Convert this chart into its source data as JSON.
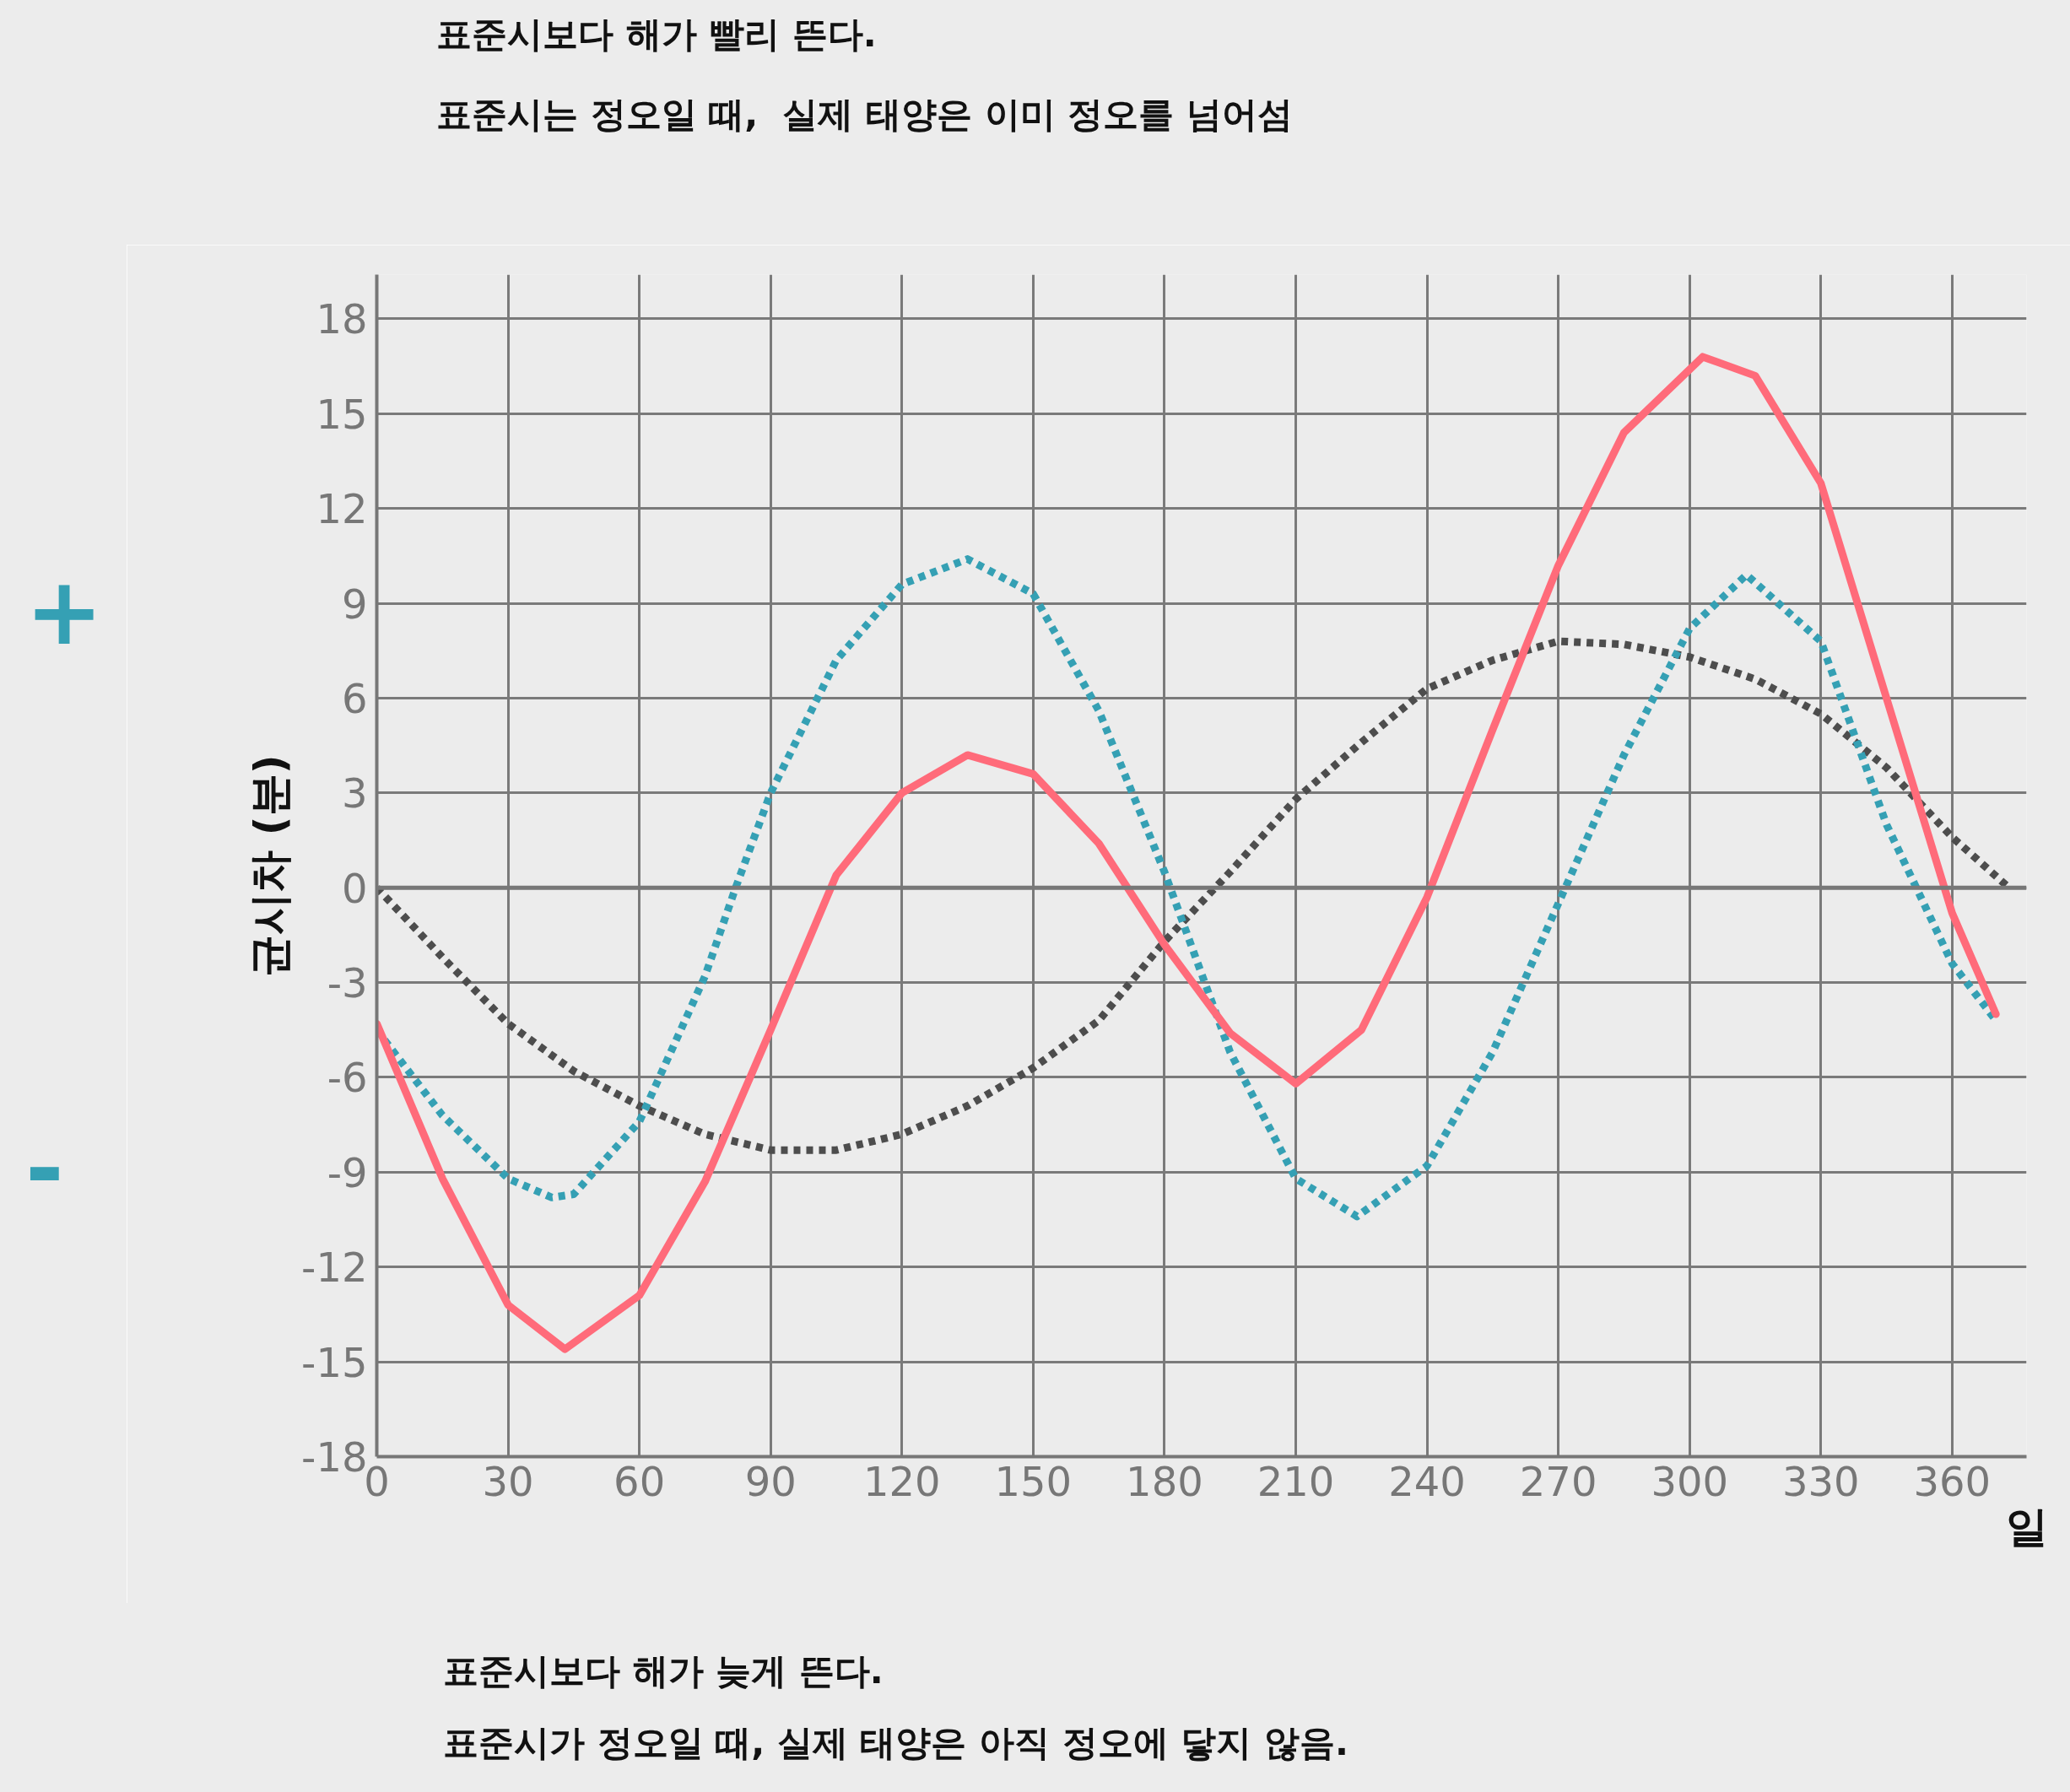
{
  "chart_data": {
    "type": "line",
    "xlabel": "일",
    "ylabel": "균시차 (분)",
    "xlim": [
      0,
      377
    ],
    "ylim": [
      -18,
      19.4
    ],
    "xticks": [
      0,
      30,
      60,
      90,
      120,
      150,
      180,
      210,
      240,
      270,
      300,
      330,
      360
    ],
    "yticks": [
      -18,
      -15,
      -12,
      -9,
      -6,
      -3,
      0,
      3,
      6,
      9,
      12,
      15,
      18
    ],
    "grid": true,
    "marker": "none",
    "ref_lines": [
      {
        "axis": "y",
        "value": 0,
        "label": null,
        "color": "#777777"
      }
    ],
    "annotations": [
      "표준시보다 해가 빨리 뜬다.",
      "표준시는 정오일 때,  실제 태양은 이미 정오를 넘어섬",
      "표준시보다 해가 늦게 뜬다.",
      "표준시가 정오일 때, 실제 태양은 아직 정오에 닿지 않음.",
      "+",
      "-"
    ],
    "series": [
      {
        "color": "#4d4d4d",
        "line_style": "dotted",
        "x": [
          0,
          15,
          30,
          45,
          60,
          75,
          90,
          105,
          120,
          135,
          150,
          165,
          180,
          195,
          210,
          225,
          240,
          255,
          270,
          285,
          300,
          315,
          330,
          345,
          360,
          373
        ],
        "values": [
          0,
          -2.2,
          -4.3,
          -5.8,
          -6.9,
          -7.8,
          -8.3,
          -8.3,
          -7.8,
          -6.9,
          -5.7,
          -4.2,
          -1.7,
          0.5,
          2.8,
          4.6,
          6.3,
          7.2,
          7.8,
          7.7,
          7.3,
          6.6,
          5.5,
          3.8,
          1.6,
          0
        ]
      },
      {
        "color": "#35a0b4",
        "line_style": "dotted",
        "x": [
          0,
          15,
          30,
          40,
          45,
          60,
          75,
          82,
          90,
          105,
          120,
          135,
          150,
          165,
          180,
          195,
          210,
          224,
          240,
          255,
          270,
          285,
          300,
          313,
          330,
          345,
          360,
          370
        ],
        "values": [
          -4.5,
          -7.2,
          -9.2,
          -9.8,
          -9.7,
          -7.4,
          -2.8,
          0,
          3.0,
          7.2,
          9.6,
          10.4,
          9.3,
          5.6,
          0.5,
          -5.2,
          -9.2,
          -10.4,
          -8.8,
          -5.2,
          -0.5,
          4.2,
          8.2,
          9.9,
          7.8,
          2.0,
          -2.4,
          -4.2
        ]
      },
      {
        "color": "#ff6b7a",
        "line_style": "solid",
        "x": [
          0,
          15,
          30,
          43,
          60,
          75,
          90,
          105,
          120,
          135,
          150,
          165,
          180,
          195,
          210,
          225,
          240,
          255,
          270,
          285,
          303,
          315,
          330,
          345,
          360,
          370
        ],
        "values": [
          -4.3,
          -9.2,
          -13.2,
          -14.6,
          -12.9,
          -9.3,
          -4.5,
          0.4,
          3.0,
          4.2,
          3.6,
          1.4,
          -1.8,
          -4.6,
          -6.2,
          -4.5,
          -0.3,
          5.0,
          10.2,
          14.4,
          16.8,
          16.2,
          12.8,
          6.0,
          -0.8,
          -4.0
        ]
      }
    ]
  }
}
